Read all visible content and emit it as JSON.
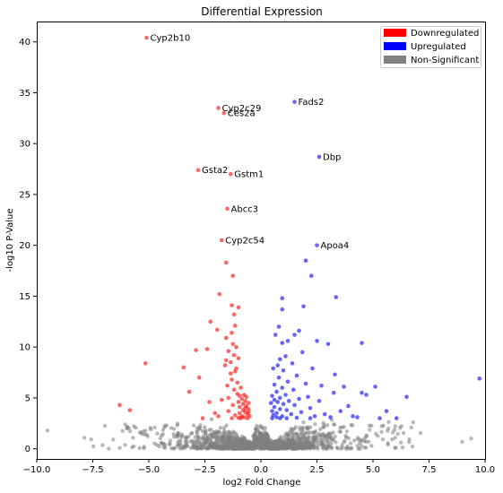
{
  "chart_data": {
    "type": "scatter",
    "title": "Differential Expression",
    "xlabel": "log2 Fold Change",
    "ylabel": "-log10 P-Value",
    "xlim": [
      -10,
      10
    ],
    "ylim": [
      -1,
      42
    ],
    "xticks": [
      "−10.0",
      "−7.5",
      "−5.0",
      "−2.5",
      "0.0",
      "2.5",
      "5.0",
      "7.5",
      "10.0"
    ],
    "xtick_values": [
      -10,
      -7.5,
      -5,
      -2.5,
      0,
      2.5,
      5,
      7.5,
      10
    ],
    "yticks": [
      "0",
      "5",
      "10",
      "15",
      "20",
      "25",
      "30",
      "35",
      "40"
    ],
    "ytick_values": [
      0,
      5,
      10,
      15,
      20,
      25,
      30,
      35,
      40
    ],
    "grid": false,
    "legend_position": "top-right",
    "colors": {
      "down": "#ff0000",
      "up": "#0000ff",
      "ns": "#808080"
    },
    "series": [
      {
        "name": "Downregulated",
        "color": "#ff0000",
        "points": [
          [
            -5.1,
            40.4
          ],
          [
            -1.9,
            33.5
          ],
          [
            -1.65,
            33.0
          ],
          [
            -2.8,
            27.4
          ],
          [
            -1.35,
            27.0
          ],
          [
            -1.5,
            23.6
          ],
          [
            -1.75,
            20.5
          ],
          [
            -1.55,
            18.3
          ],
          [
            -1.25,
            17.0
          ],
          [
            -1.85,
            15.2
          ],
          [
            -1.3,
            14.1
          ],
          [
            -1.0,
            13.9
          ],
          [
            -1.2,
            13.2
          ],
          [
            -2.25,
            12.5
          ],
          [
            -1.15,
            12.1
          ],
          [
            -1.95,
            11.7
          ],
          [
            -1.3,
            11.4
          ],
          [
            -1.55,
            10.9
          ],
          [
            -1.25,
            10.3
          ],
          [
            -1.1,
            10.0
          ],
          [
            -2.4,
            9.8
          ],
          [
            -2.9,
            9.7
          ],
          [
            -1.45,
            9.6
          ],
          [
            -1.2,
            9.2
          ],
          [
            -1.0,
            8.9
          ],
          [
            -1.55,
            8.7
          ],
          [
            -1.35,
            8.5
          ],
          [
            -5.15,
            8.4
          ],
          [
            -1.6,
            8.2
          ],
          [
            -1.1,
            7.9
          ],
          [
            -3.45,
            8.0
          ],
          [
            -1.35,
            7.4
          ],
          [
            -1.15,
            7.6
          ],
          [
            -2.75,
            7.0
          ],
          [
            -1.3,
            6.8
          ],
          [
            -1.05,
            6.5
          ],
          [
            -1.5,
            6.2
          ],
          [
            -0.9,
            6.0
          ],
          [
            -1.2,
            5.8
          ],
          [
            -3.2,
            5.6
          ],
          [
            -1.05,
            5.4
          ],
          [
            -0.75,
            5.3
          ],
          [
            -0.95,
            5.2
          ],
          [
            -0.65,
            5.1
          ],
          [
            -1.45,
            5.0
          ],
          [
            -0.85,
            4.9
          ],
          [
            -1.75,
            4.8
          ],
          [
            -0.7,
            4.7
          ],
          [
            -2.3,
            4.6
          ],
          [
            -1.0,
            4.6
          ],
          [
            -0.55,
            4.5
          ],
          [
            -0.8,
            4.4
          ],
          [
            -6.3,
            4.3
          ],
          [
            -1.25,
            4.3
          ],
          [
            -0.65,
            4.2
          ],
          [
            -0.95,
            4.1
          ],
          [
            -5.85,
            3.8
          ],
          [
            -0.55,
            3.9
          ],
          [
            -0.8,
            3.8
          ],
          [
            -1.45,
            3.7
          ],
          [
            -0.7,
            3.6
          ],
          [
            -0.95,
            3.5
          ],
          [
            -2.05,
            3.5
          ],
          [
            -0.6,
            3.4
          ],
          [
            -1.15,
            3.3
          ],
          [
            -0.85,
            3.2
          ],
          [
            -0.5,
            3.2
          ],
          [
            -0.75,
            3.1
          ],
          [
            -1.0,
            3.05
          ],
          [
            -0.6,
            3.0
          ],
          [
            -1.3,
            3.0
          ],
          [
            -0.9,
            3.0
          ],
          [
            -1.9,
            3.2
          ],
          [
            -2.6,
            3.0
          ],
          [
            -0.55,
            3.6
          ],
          [
            -0.7,
            4.0
          ]
        ],
        "labels": [
          {
            "text": "Cyp2b10",
            "x": -5.1,
            "y": 40.4
          },
          {
            "text": "Cyp2c29",
            "x": -1.9,
            "y": 33.5
          },
          {
            "text": "Ces2a",
            "x": -1.65,
            "y": 33.0
          },
          {
            "text": "Gsta2",
            "x": -2.8,
            "y": 27.4
          },
          {
            "text": "Gstm1",
            "x": -1.35,
            "y": 27.0
          },
          {
            "text": "Abcc3",
            "x": -1.5,
            "y": 23.6
          },
          {
            "text": "Cyp2c54",
            "x": -1.75,
            "y": 20.5
          }
        ]
      },
      {
        "name": "Upregulated",
        "color": "#0000ff",
        "points": [
          [
            1.5,
            34.1
          ],
          [
            2.6,
            28.7
          ],
          [
            2.5,
            20.0
          ],
          [
            2.0,
            18.5
          ],
          [
            2.25,
            17.0
          ],
          [
            3.35,
            14.9
          ],
          [
            1.9,
            14.0
          ],
          [
            0.95,
            14.8
          ],
          [
            0.95,
            13.7
          ],
          [
            0.8,
            12.0
          ],
          [
            1.5,
            11.2
          ],
          [
            1.7,
            11.6
          ],
          [
            2.5,
            10.6
          ],
          [
            0.65,
            11.2
          ],
          [
            0.95,
            10.4
          ],
          [
            3.0,
            10.3
          ],
          [
            4.5,
            10.4
          ],
          [
            1.2,
            10.6
          ],
          [
            1.85,
            9.5
          ],
          [
            1.1,
            9.1
          ],
          [
            0.85,
            8.8
          ],
          [
            1.4,
            8.4
          ],
          [
            0.75,
            8.2
          ],
          [
            2.3,
            7.9
          ],
          [
            1.0,
            7.7
          ],
          [
            0.55,
            7.9
          ],
          [
            1.6,
            7.2
          ],
          [
            3.3,
            7.3
          ],
          [
            0.8,
            7.0
          ],
          [
            1.2,
            6.6
          ],
          [
            2.0,
            6.4
          ],
          [
            0.6,
            6.3
          ],
          [
            2.7,
            6.2
          ],
          [
            3.7,
            6.1
          ],
          [
            0.95,
            6.0
          ],
          [
            1.45,
            5.8
          ],
          [
            0.7,
            5.6
          ],
          [
            4.5,
            5.5
          ],
          [
            9.75,
            6.9
          ],
          [
            5.1,
            6.1
          ],
          [
            6.5,
            5.1
          ],
          [
            3.25,
            5.5
          ],
          [
            4.7,
            5.3
          ],
          [
            1.1,
            5.3
          ],
          [
            0.5,
            5.2
          ],
          [
            2.1,
            5.1
          ],
          [
            0.85,
            5.0
          ],
          [
            1.7,
            4.9
          ],
          [
            0.6,
            4.8
          ],
          [
            1.25,
            4.7
          ],
          [
            2.6,
            4.7
          ],
          [
            0.75,
            4.6
          ],
          [
            0.45,
            4.5
          ],
          [
            1.0,
            4.4
          ],
          [
            1.5,
            4.3
          ],
          [
            3.9,
            4.2
          ],
          [
            0.6,
            4.1
          ],
          [
            2.2,
            4.0
          ],
          [
            0.85,
            3.9
          ],
          [
            1.15,
            3.8
          ],
          [
            0.5,
            3.7
          ],
          [
            1.8,
            3.6
          ],
          [
            5.6,
            3.7
          ],
          [
            0.7,
            3.5
          ],
          [
            2.85,
            3.4
          ],
          [
            1.35,
            3.4
          ],
          [
            0.55,
            3.3
          ],
          [
            0.95,
            3.2
          ],
          [
            2.4,
            3.2
          ],
          [
            0.7,
            3.1
          ],
          [
            1.15,
            3.0
          ],
          [
            3.1,
            3.1
          ],
          [
            4.1,
            3.2
          ],
          [
            5.3,
            3.0
          ],
          [
            6.05,
            3.0
          ],
          [
            0.5,
            3.0
          ],
          [
            1.6,
            3.05
          ],
          [
            0.85,
            3.0
          ],
          [
            3.55,
            3.7
          ],
          [
            4.3,
            3.1
          ],
          [
            2.2,
            3.0
          ]
        ],
        "labels": [
          {
            "text": "Fads2",
            "x": 1.5,
            "y": 34.1
          },
          {
            "text": "Dbp",
            "x": 2.6,
            "y": 28.7
          },
          {
            "text": "Apoa4",
            "x": 2.5,
            "y": 20.0
          }
        ]
      },
      {
        "name": "Non-Significant",
        "color": "#808080",
        "points": []
      }
    ]
  }
}
